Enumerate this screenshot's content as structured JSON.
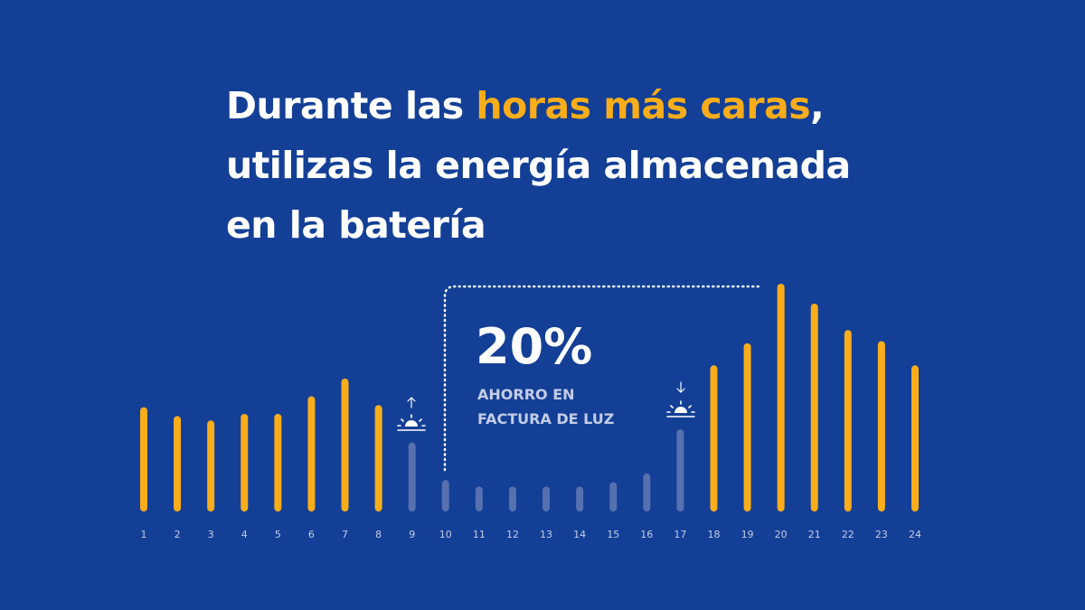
{
  "headline": {
    "before": "Durante las ",
    "highlight": "horas más caras",
    "after_comma": ",",
    "line2": "utilizas la energía almacenada",
    "line3": "en la batería"
  },
  "stat": {
    "value": "20%",
    "label_line1": "AHORRO EN",
    "label_line2": "FACTURA DE LUZ"
  },
  "colors": {
    "background": "#133f96",
    "expensive_bar": "#f9ad1a",
    "cheap_bar": "#5670b0",
    "text": "#ffffff",
    "muted_text": "#c3cde6"
  },
  "icons": {
    "sunrise": "sunrise-icon",
    "sunset": "sunset-icon"
  },
  "chart_data": {
    "type": "bar",
    "title": "",
    "xlabel": "",
    "ylabel": "",
    "categories": [
      "1",
      "2",
      "3",
      "4",
      "5",
      "6",
      "7",
      "8",
      "9",
      "10",
      "11",
      "12",
      "13",
      "14",
      "15",
      "16",
      "17",
      "18",
      "19",
      "20",
      "21",
      "22",
      "23",
      "24"
    ],
    "values": [
      44,
      40,
      38,
      41,
      41,
      49,
      57,
      45,
      28,
      11,
      8,
      8,
      8,
      8,
      10,
      14,
      34,
      63,
      73,
      100,
      91,
      79,
      74,
      63
    ],
    "highlighted": [
      true,
      true,
      true,
      true,
      true,
      true,
      true,
      true,
      false,
      false,
      false,
      false,
      false,
      false,
      false,
      false,
      false,
      true,
      true,
      true,
      true,
      true,
      true,
      true
    ],
    "ylim": [
      0,
      100
    ],
    "grid": false,
    "legend": "none",
    "annotations": [
      {
        "text": "20%",
        "note": "AHORRO EN FACTURA DE LUZ",
        "span": [
          "10",
          "20"
        ]
      },
      {
        "icon": "sunrise-icon",
        "at": "9"
      },
      {
        "icon": "sunset-icon",
        "at": "17"
      }
    ]
  }
}
